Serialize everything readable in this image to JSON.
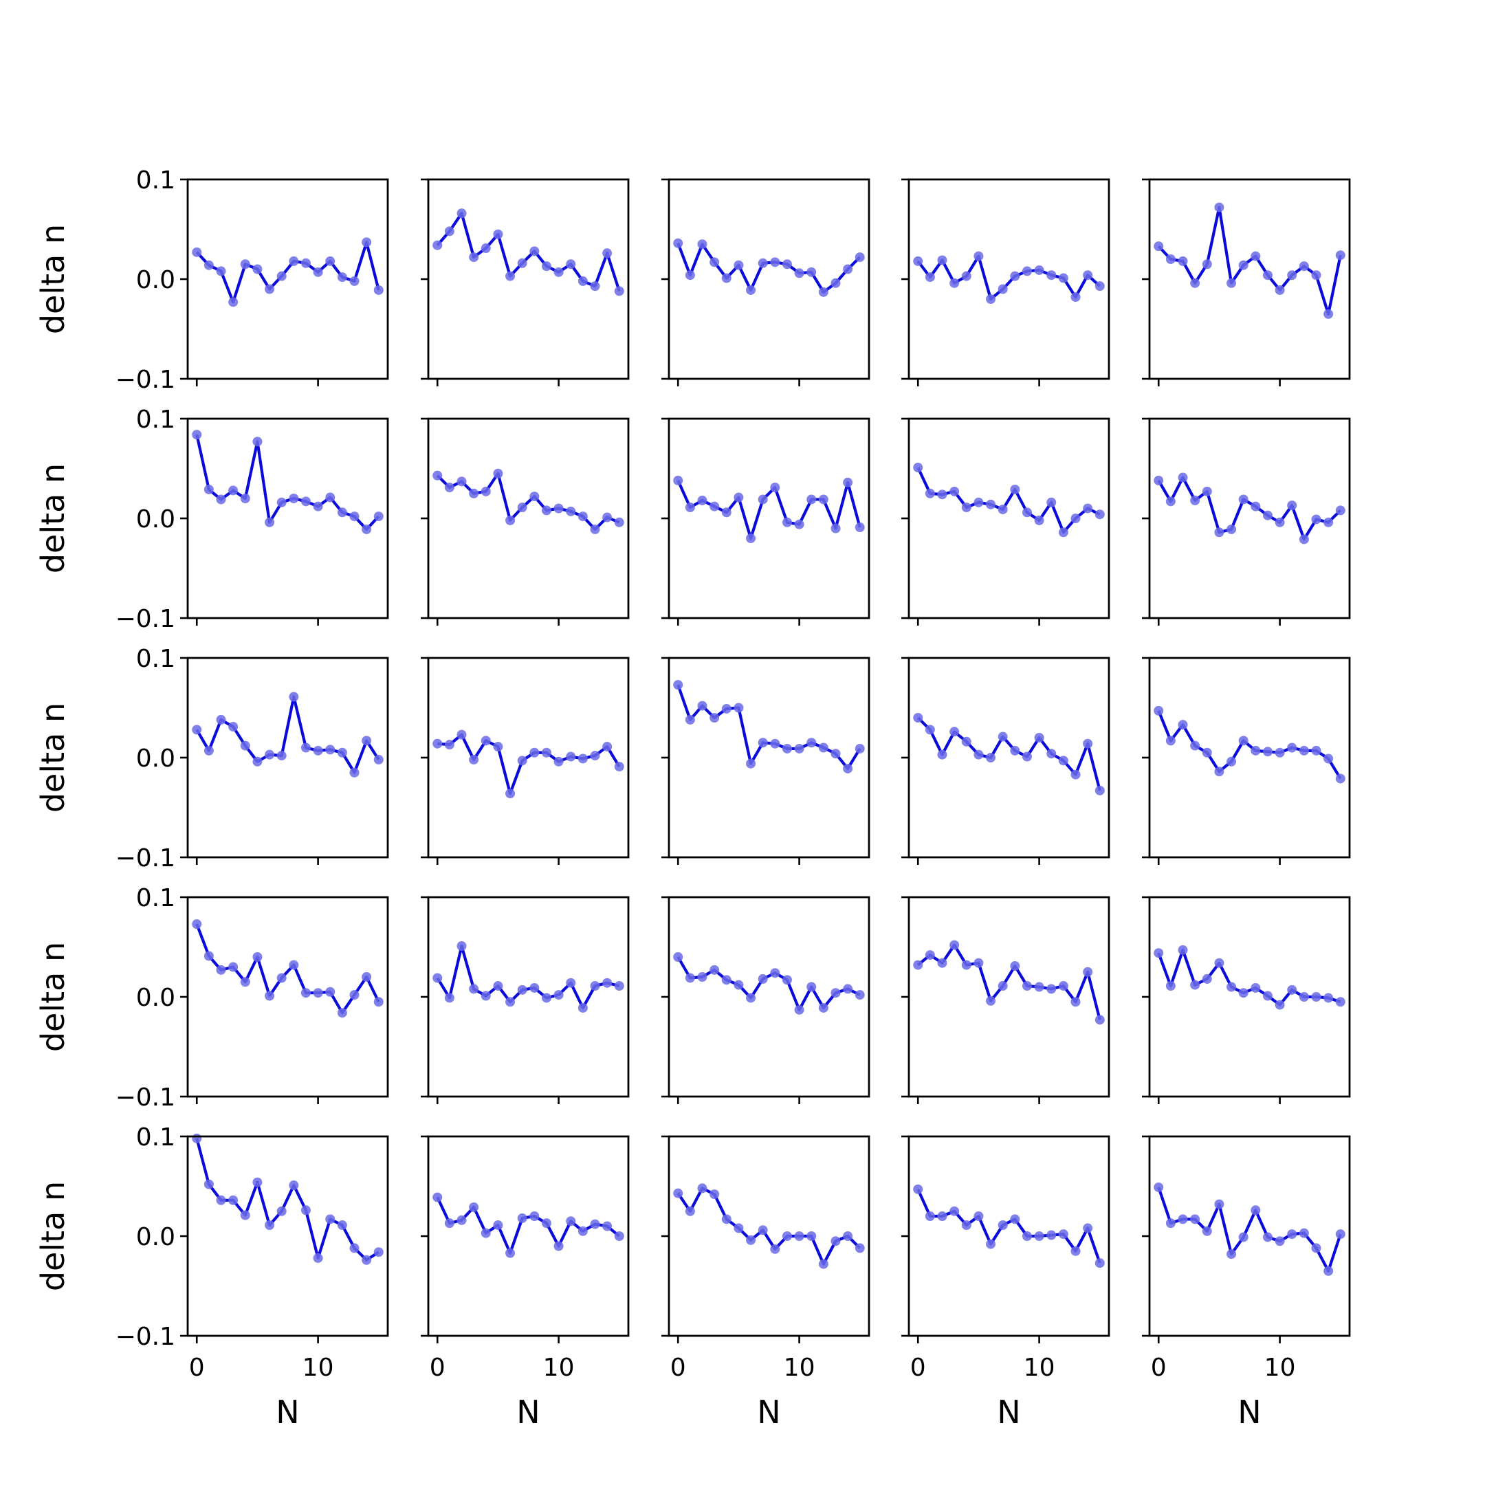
{
  "chart_data": {
    "type": "line",
    "grid": false,
    "rows": 5,
    "cols": 5,
    "xlabel": "N",
    "ylabel": "delta n",
    "xlim": [
      -0.75,
      15.75
    ],
    "ylim": [
      -0.1,
      0.1
    ],
    "x_ticks": [
      0,
      10
    ],
    "x_tick_labels": [
      "0",
      "10"
    ],
    "y_ticks": [
      0.1,
      0.0,
      -0.1
    ],
    "y_tick_labels": [
      "0.1",
      "0.0",
      "−0.1"
    ],
    "x": [
      0,
      1,
      2,
      3,
      4,
      5,
      6,
      7,
      8,
      9,
      10,
      11,
      12,
      13,
      14,
      15
    ],
    "colors": {
      "line": "#0a0adb",
      "marker": "#6a6ae6"
    },
    "panels": [
      {
        "values": [
          0.027,
          0.014,
          0.008,
          -0.023,
          0.015,
          0.01,
          -0.01,
          0.003,
          0.018,
          0.016,
          0.007,
          0.018,
          0.002,
          -0.002,
          0.037,
          -0.011
        ]
      },
      {
        "values": [
          0.034,
          0.048,
          0.066,
          0.022,
          0.031,
          0.045,
          0.003,
          0.016,
          0.028,
          0.013,
          0.007,
          0.015,
          -0.002,
          -0.007,
          0.026,
          -0.012
        ]
      },
      {
        "values": [
          0.036,
          0.004,
          0.035,
          0.017,
          0.001,
          0.014,
          -0.011,
          0.016,
          0.017,
          0.015,
          0.006,
          0.007,
          -0.013,
          -0.004,
          0.01,
          0.022
        ]
      },
      {
        "values": [
          0.018,
          0.002,
          0.019,
          -0.004,
          0.003,
          0.023,
          -0.02,
          -0.01,
          0.003,
          0.008,
          0.009,
          0.004,
          0.001,
          -0.018,
          0.004,
          -0.007
        ]
      },
      {
        "values": [
          0.033,
          0.02,
          0.018,
          -0.004,
          0.015,
          0.072,
          -0.004,
          0.014,
          0.023,
          0.004,
          -0.011,
          0.004,
          0.013,
          0.004,
          -0.035,
          0.024
        ]
      },
      {
        "values": [
          0.084,
          0.029,
          0.019,
          0.028,
          0.02,
          0.077,
          -0.004,
          0.016,
          0.02,
          0.017,
          0.012,
          0.021,
          0.006,
          0.002,
          -0.011,
          0.002
        ]
      },
      {
        "values": [
          0.043,
          0.031,
          0.037,
          0.025,
          0.027,
          0.045,
          -0.002,
          0.011,
          0.022,
          0.008,
          0.01,
          0.007,
          0.002,
          -0.011,
          0.001,
          -0.004
        ]
      },
      {
        "values": [
          0.038,
          0.011,
          0.018,
          0.012,
          0.006,
          0.021,
          -0.02,
          0.019,
          0.031,
          -0.004,
          -0.006,
          0.019,
          0.019,
          -0.01,
          0.036,
          -0.009
        ]
      },
      {
        "values": [
          0.051,
          0.025,
          0.024,
          0.027,
          0.011,
          0.016,
          0.014,
          0.009,
          0.029,
          0.006,
          -0.002,
          0.016,
          -0.014,
          0.0,
          0.01,
          0.004
        ]
      },
      {
        "values": [
          0.038,
          0.017,
          0.041,
          0.018,
          0.027,
          -0.014,
          -0.011,
          0.019,
          0.012,
          0.003,
          -0.004,
          0.013,
          -0.021,
          -0.001,
          -0.004,
          0.008
        ]
      },
      {
        "values": [
          0.028,
          0.007,
          0.038,
          0.031,
          0.012,
          -0.004,
          0.003,
          0.002,
          0.061,
          0.01,
          0.007,
          0.008,
          0.005,
          -0.015,
          0.017,
          -0.002
        ]
      },
      {
        "values": [
          0.014,
          0.013,
          0.023,
          -0.002,
          0.017,
          0.011,
          -0.036,
          -0.003,
          0.005,
          0.005,
          -0.004,
          0.001,
          -0.001,
          0.002,
          0.011,
          -0.009
        ]
      },
      {
        "values": [
          0.073,
          0.038,
          0.052,
          0.04,
          0.049,
          0.05,
          -0.006,
          0.015,
          0.014,
          0.009,
          0.009,
          0.015,
          0.01,
          0.004,
          -0.011,
          0.009
        ]
      },
      {
        "values": [
          0.04,
          0.028,
          0.003,
          0.026,
          0.016,
          0.003,
          0.0,
          0.021,
          0.007,
          0.001,
          0.02,
          0.004,
          -0.003,
          -0.017,
          0.014,
          -0.033
        ]
      },
      {
        "values": [
          0.047,
          0.017,
          0.033,
          0.012,
          0.005,
          -0.014,
          -0.004,
          0.017,
          0.007,
          0.006,
          0.005,
          0.01,
          0.007,
          0.007,
          -0.001,
          -0.021
        ]
      },
      {
        "values": [
          0.073,
          0.041,
          0.027,
          0.03,
          0.015,
          0.04,
          0.001,
          0.019,
          0.032,
          0.004,
          0.004,
          0.005,
          -0.016,
          0.002,
          0.02,
          -0.005
        ]
      },
      {
        "values": [
          0.019,
          -0.001,
          0.051,
          0.008,
          0.001,
          0.011,
          -0.005,
          0.007,
          0.009,
          -0.001,
          0.002,
          0.014,
          -0.011,
          0.011,
          0.014,
          0.011
        ]
      },
      {
        "values": [
          0.04,
          0.019,
          0.02,
          0.027,
          0.017,
          0.012,
          -0.001,
          0.018,
          0.024,
          0.017,
          -0.013,
          0.01,
          -0.011,
          0.004,
          0.008,
          0.002
        ]
      },
      {
        "values": [
          0.032,
          0.042,
          0.034,
          0.052,
          0.032,
          0.034,
          -0.004,
          0.011,
          0.031,
          0.011,
          0.01,
          0.008,
          0.011,
          -0.005,
          0.025,
          -0.023
        ]
      },
      {
        "values": [
          0.044,
          0.011,
          0.047,
          0.012,
          0.018,
          0.034,
          0.01,
          0.004,
          0.009,
          0.001,
          -0.008,
          0.007,
          0.0,
          0.0,
          -0.001,
          -0.005
        ]
      },
      {
        "values": [
          0.098,
          0.052,
          0.036,
          0.036,
          0.021,
          0.054,
          0.011,
          0.025,
          0.051,
          0.026,
          -0.022,
          0.017,
          0.011,
          -0.012,
          -0.024,
          -0.016
        ]
      },
      {
        "values": [
          0.039,
          0.013,
          0.016,
          0.029,
          0.003,
          0.011,
          -0.017,
          0.018,
          0.02,
          0.013,
          -0.01,
          0.015,
          0.005,
          0.012,
          0.01,
          0.0
        ]
      },
      {
        "values": [
          0.043,
          0.025,
          0.048,
          0.042,
          0.017,
          0.008,
          -0.004,
          0.006,
          -0.013,
          0.0,
          0.0,
          0.0,
          -0.028,
          -0.005,
          0.0,
          -0.012
        ]
      },
      {
        "values": [
          0.047,
          0.02,
          0.02,
          0.025,
          0.011,
          0.02,
          -0.008,
          0.011,
          0.017,
          0.0,
          0.0,
          0.001,
          0.002,
          -0.015,
          0.008,
          -0.027
        ]
      },
      {
        "values": [
          0.049,
          0.013,
          0.017,
          0.017,
          0.005,
          0.032,
          -0.018,
          -0.001,
          0.026,
          -0.001,
          -0.005,
          0.002,
          0.003,
          -0.012,
          -0.035,
          0.002
        ]
      }
    ]
  }
}
